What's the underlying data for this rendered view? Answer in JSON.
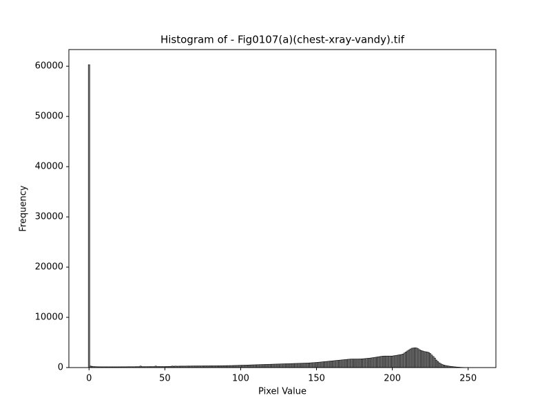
{
  "chart_data": {
    "type": "histogram",
    "title": "Histogram of - Fig0107(a)(chest-xray-vandy).tif",
    "xlabel": "Pixel Value",
    "ylabel": "Frequency",
    "color": "#808080",
    "edgecolor": "#000000",
    "xlim": [
      -13.3,
      268.3
    ],
    "xticks": [
      0,
      50,
      100,
      150,
      200,
      250
    ],
    "ylim": [
      0,
      63315
    ],
    "yticks": [
      0,
      10000,
      20000,
      30000,
      40000,
      50000,
      60000
    ],
    "bins": [
      -0.5,
      0.5,
      1.5,
      2.5,
      3.5,
      4.5,
      5.5,
      6.5,
      7.5,
      8.5,
      9.5,
      10.5,
      11.5,
      12.5,
      13.5,
      14.5,
      15.5,
      16.5,
      17.5,
      18.5,
      19.5,
      20.5,
      21.5,
      22.5,
      23.5,
      24.5,
      25.5,
      26.5,
      27.5,
      28.5,
      29.5,
      30.5,
      31.5,
      32.5,
      33.5,
      34.5,
      35.5,
      36.5,
      37.5,
      38.5,
      39.5,
      40.5,
      41.5,
      42.5,
      43.5,
      44.5,
      45.5,
      46.5,
      47.5,
      48.5,
      49.5,
      50.5,
      51.5,
      52.5,
      53.5,
      54.5,
      55.5,
      56.5,
      57.5,
      58.5,
      59.5,
      60.5,
      61.5,
      62.5,
      63.5,
      64.5,
      65.5,
      66.5,
      67.5,
      68.5,
      69.5,
      70.5,
      71.5,
      72.5,
      73.5,
      74.5,
      75.5,
      76.5,
      77.5,
      78.5,
      79.5,
      80.5,
      81.5,
      82.5,
      83.5,
      84.5,
      85.5,
      86.5,
      87.5,
      88.5,
      89.5,
      90.5,
      91.5,
      92.5,
      93.5,
      94.5,
      95.5,
      96.5,
      97.5,
      98.5,
      99.5,
      100.5,
      101.5,
      102.5,
      103.5,
      104.5,
      105.5,
      106.5,
      107.5,
      108.5,
      109.5,
      110.5,
      111.5,
      112.5,
      113.5,
      114.5,
      115.5,
      116.5,
      117.5,
      118.5,
      119.5,
      120.5,
      121.5,
      122.5,
      123.5,
      124.5,
      125.5,
      126.5,
      127.5,
      128.5,
      129.5,
      130.5,
      131.5,
      132.5,
      133.5,
      134.5,
      135.5,
      136.5,
      137.5,
      138.5,
      139.5,
      140.5,
      141.5,
      142.5,
      143.5,
      144.5,
      145.5,
      146.5,
      147.5,
      148.5,
      149.5,
      150.5,
      151.5,
      152.5,
      153.5,
      154.5,
      155.5,
      156.5,
      157.5,
      158.5,
      159.5,
      160.5,
      161.5,
      162.5,
      163.5,
      164.5,
      165.5,
      166.5,
      167.5,
      168.5,
      169.5,
      170.5,
      171.5,
      172.5,
      173.5,
      174.5,
      175.5,
      176.5,
      177.5,
      178.5,
      179.5,
      180.5,
      181.5,
      182.5,
      183.5,
      184.5,
      185.5,
      186.5,
      187.5,
      188.5,
      189.5,
      190.5,
      191.5,
      192.5,
      193.5,
      194.5,
      195.5,
      196.5,
      197.5,
      198.5,
      199.5,
      200.5,
      201.5,
      202.5,
      203.5,
      204.5,
      205.5,
      206.5,
      207.5,
      208.5,
      209.5,
      210.5,
      211.5,
      212.5,
      213.5,
      214.5,
      215.5,
      216.5,
      217.5,
      218.5,
      219.5,
      220.5,
      221.5,
      222.5,
      223.5,
      224.5,
      225.5,
      226.5,
      227.5,
      228.5,
      229.5,
      230.5,
      231.5,
      232.5,
      233.5,
      234.5,
      235.5,
      236.5,
      237.5,
      238.5,
      239.5,
      240.5,
      241.5,
      242.5,
      243.5,
      244.5,
      245.5,
      246.5,
      247.5,
      248.5,
      249.5,
      250.5,
      251.5,
      252.5,
      253.5,
      254.5,
      255.5
    ],
    "values": [
      60300,
      300,
      250,
      200,
      180,
      170,
      160,
      160,
      150,
      150,
      150,
      150,
      150,
      150,
      150,
      150,
      150,
      150,
      150,
      150,
      150,
      160,
      160,
      160,
      160,
      160,
      170,
      170,
      170,
      170,
      170,
      180,
      180,
      180,
      300,
      180,
      180,
      180,
      180,
      190,
      190,
      190,
      190,
      190,
      300,
      200,
      200,
      200,
      200,
      200,
      200,
      210,
      220,
      230,
      250,
      300,
      260,
      300,
      270,
      280,
      290,
      300,
      300,
      300,
      300,
      310,
      310,
      310,
      320,
      320,
      320,
      320,
      330,
      330,
      330,
      330,
      340,
      340,
      340,
      340,
      350,
      350,
      350,
      350,
      360,
      360,
      360,
      370,
      370,
      380,
      380,
      390,
      390,
      400,
      400,
      410,
      420,
      430,
      440,
      450,
      460,
      470,
      480,
      490,
      500,
      510,
      520,
      530,
      540,
      550,
      560,
      570,
      580,
      590,
      600,
      610,
      620,
      630,
      640,
      650,
      660,
      670,
      680,
      690,
      700,
      710,
      720,
      730,
      740,
      750,
      760,
      770,
      780,
      790,
      800,
      810,
      820,
      830,
      840,
      850,
      860,
      870,
      880,
      890,
      900,
      920,
      940,
      960,
      980,
      1000,
      1020,
      1050,
      1080,
      1110,
      1140,
      1170,
      1200,
      1230,
      1260,
      1290,
      1320,
      1350,
      1380,
      1410,
      1440,
      1470,
      1500,
      1530,
      1560,
      1590,
      1620,
      1650,
      1680,
      1700,
      1700,
      1700,
      1700,
      1700,
      1710,
      1720,
      1740,
      1760,
      1790,
      1820,
      1850,
      1880,
      1920,
      1960,
      2000,
      2050,
      2100,
      2150,
      2200,
      2250,
      2280,
      2300,
      2300,
      2300,
      2300,
      2300,
      2300,
      2350,
      2400,
      2450,
      2500,
      2550,
      2600,
      2700,
      2900,
      3100,
      3300,
      3500,
      3700,
      3850,
      3900,
      3950,
      3900,
      3750,
      3550,
      3400,
      3300,
      3200,
      3150,
      3100,
      3000,
      2800,
      2500,
      2200,
      1900,
      1500,
      1200,
      950,
      750,
      600,
      500,
      420,
      360,
      310,
      260,
      220,
      180,
      150,
      120,
      100,
      80,
      60,
      45,
      35,
      25,
      20,
      15,
      10,
      6,
      3,
      1,
      0
    ]
  }
}
